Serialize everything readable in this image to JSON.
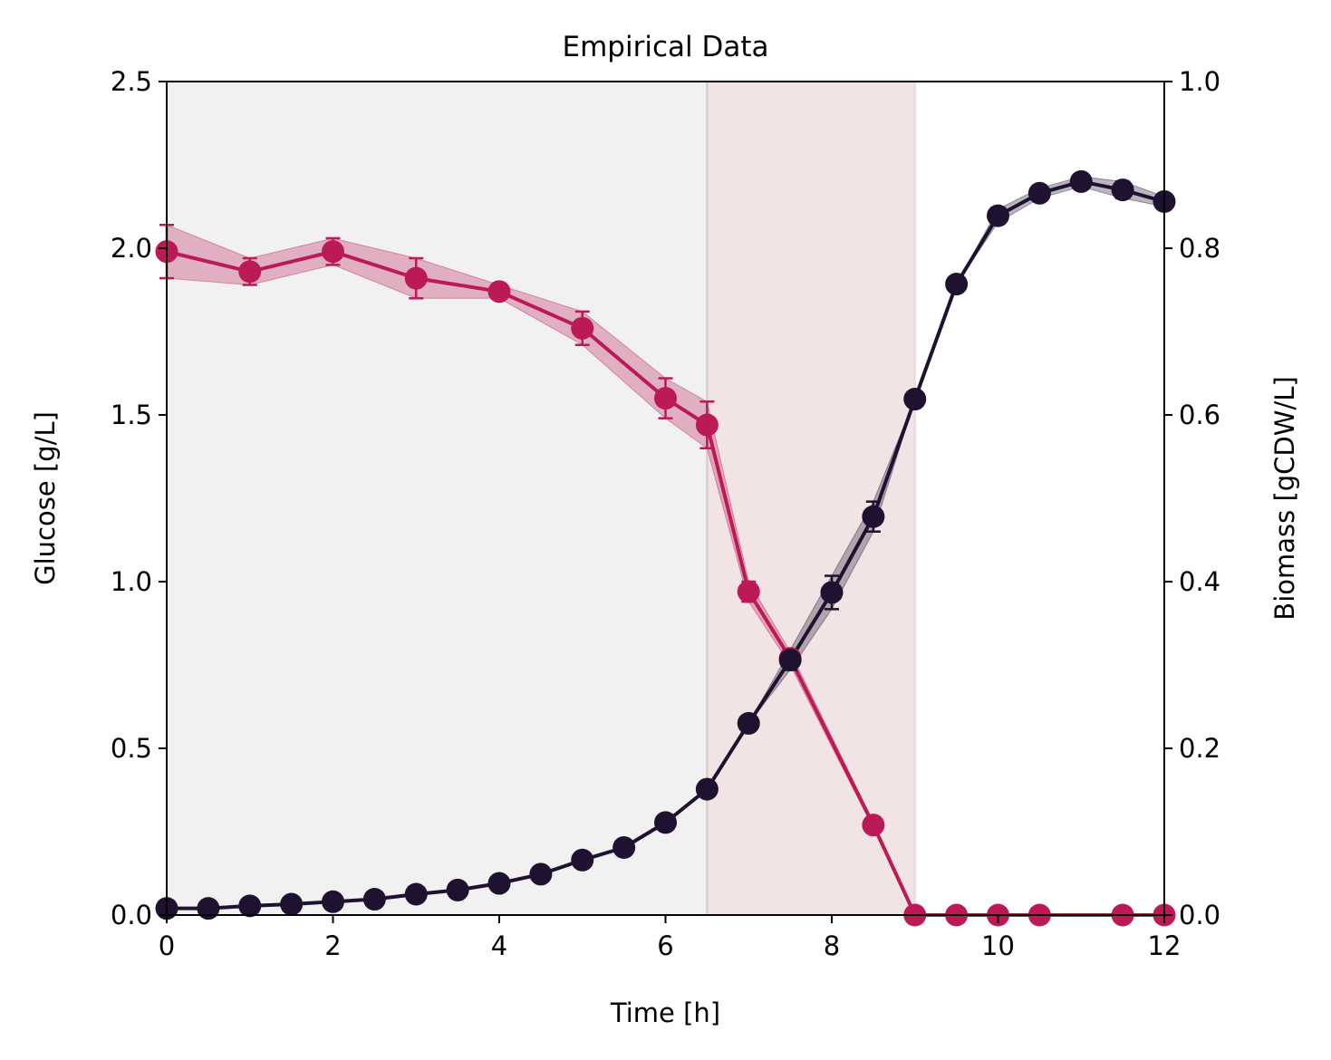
{
  "chart_data": {
    "type": "line",
    "title": "Empirical Data",
    "xlabel": "Time [h]",
    "ylabel_left": "Glucose [g/L]",
    "ylabel_right": "Biomass [gCDW/L]",
    "xlim": [
      0,
      12
    ],
    "ylim_left": [
      0,
      2.5
    ],
    "ylim_right": [
      0,
      1.0
    ],
    "x_ticks": [
      0,
      2,
      4,
      6,
      8,
      10,
      12
    ],
    "x_tick_labels": [
      "0",
      "2",
      "4",
      "6",
      "8",
      "10",
      "12"
    ],
    "y_left_ticks": [
      0,
      0.5,
      1.0,
      1.5,
      2.0,
      2.5
    ],
    "y_left_tick_labels": [
      "0.0",
      "0.5",
      "1.0",
      "1.5",
      "2.0",
      "2.5"
    ],
    "y_right_ticks": [
      0,
      0.2,
      0.4,
      0.6,
      0.8,
      1.0
    ],
    "y_right_tick_labels": [
      "0.0",
      "0.2",
      "0.4",
      "0.6",
      "0.8",
      "1.0"
    ],
    "grid": false,
    "shaded_regions": [
      {
        "x0": 0,
        "x1": 6.5,
        "color": "#f1f1f1"
      },
      {
        "x0": 6.5,
        "x1": 9,
        "color": "#f2e3e4"
      }
    ],
    "series": [
      {
        "axis": "left",
        "color": "#bb1a56",
        "x": [
          0,
          1,
          2,
          3,
          4,
          5,
          6,
          6.5,
          7,
          7.5,
          8.5,
          9,
          9.5,
          10,
          10.5,
          11.5,
          12
        ],
        "values": [
          1.99,
          1.93,
          1.99,
          1.91,
          1.87,
          1.76,
          1.55,
          1.47,
          0.97,
          0.77,
          0.27,
          0.0,
          0.0,
          0.0,
          0.0,
          0.0,
          0.0
        ],
        "errors": [
          0.08,
          0.04,
          0.04,
          0.06,
          0.02,
          0.05,
          0.06,
          0.07,
          0.03,
          0.02,
          0.01,
          0,
          0,
          0,
          0,
          0,
          0
        ]
      },
      {
        "axis": "right",
        "color": "#1f1230",
        "x": [
          0,
          0.5,
          1,
          1.5,
          2,
          2.5,
          3,
          3.5,
          4,
          4.5,
          5,
          5.5,
          6,
          6.5,
          7,
          7.5,
          8,
          8.5,
          9,
          9.5,
          10,
          10.5,
          11,
          11.5,
          12
        ],
        "values": [
          0.008,
          0.008,
          0.011,
          0.013,
          0.016,
          0.019,
          0.025,
          0.03,
          0.038,
          0.049,
          0.066,
          0.081,
          0.111,
          0.151,
          0.23,
          0.306,
          0.387,
          0.478,
          0.619,
          0.757,
          0.839,
          0.866,
          0.88,
          0.87,
          0.856
        ],
        "errors": [
          0,
          0,
          0,
          0,
          0,
          0,
          0,
          0,
          0,
          0,
          0,
          0,
          0,
          0,
          0,
          0.012,
          0.02,
          0.018,
          0,
          0,
          0.008,
          0.006,
          0.006,
          0.01,
          0.006
        ]
      }
    ]
  }
}
